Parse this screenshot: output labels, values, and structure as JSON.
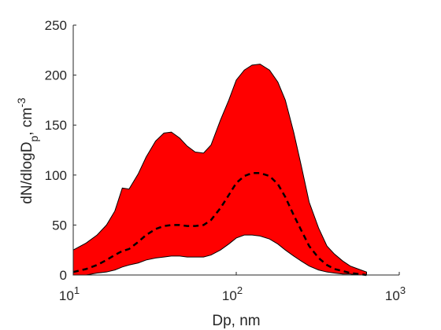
{
  "chart_data": {
    "type": "area",
    "xscale": "log",
    "xlim": [
      10,
      1000
    ],
    "ylim": [
      0,
      250
    ],
    "x_ticks": [
      10,
      100,
      1000
    ],
    "x_tick_labels": [
      {
        "base": "10",
        "exp": "1"
      },
      {
        "base": "10",
        "exp": "2"
      },
      {
        "base": "10",
        "exp": "3"
      }
    ],
    "y_ticks": [
      0,
      50,
      100,
      150,
      200,
      250
    ],
    "y_tick_labels": [
      "0",
      "50",
      "100",
      "150",
      "200",
      "250"
    ],
    "xlabel": "Dp, nm",
    "ylabel": {
      "pre": "dN/dlogD",
      "sub": "p",
      "mid": ", cm",
      "sup": "-3"
    },
    "grid": false,
    "band_color": "#ff0000",
    "line_color": "#000000",
    "x": [
      10,
      12,
      14,
      16,
      18,
      20,
      22,
      25,
      28,
      32,
      36,
      40,
      45,
      50,
      56,
      63,
      70,
      80,
      90,
      100,
      112,
      125,
      140,
      160,
      180,
      200,
      225,
      250,
      280,
      320,
      360,
      400,
      450,
      500,
      560,
      630
    ],
    "upper": [
      25,
      32,
      40,
      50,
      64,
      87,
      86,
      101,
      118,
      134,
      142,
      143,
      137,
      129,
      123,
      122,
      130,
      155,
      175,
      195,
      205,
      210,
      211,
      205,
      193,
      175,
      143,
      110,
      73,
      47,
      29,
      21,
      14,
      9,
      6,
      3
    ],
    "median": [
      3,
      6,
      10,
      15,
      20,
      24,
      26,
      33,
      40,
      46,
      49,
      50,
      50,
      49,
      49,
      50,
      55,
      67,
      80,
      92,
      99,
      102,
      102,
      99,
      91,
      78,
      60,
      45,
      29,
      17,
      10,
      6,
      4,
      2,
      1,
      0
    ],
    "lower": [
      0,
      0,
      2,
      3,
      5,
      8,
      10,
      12,
      15,
      17,
      18,
      19,
      19,
      18,
      18,
      18,
      20,
      25,
      31,
      37,
      40,
      40,
      39,
      36,
      31,
      25,
      19,
      14,
      9,
      5,
      3,
      2,
      1,
      1,
      0,
      0
    ]
  }
}
